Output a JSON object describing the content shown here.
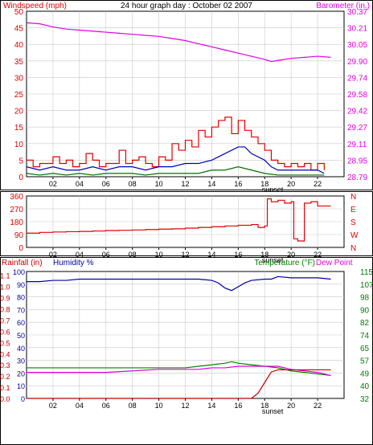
{
  "header": {
    "left_label": "Windspeed (mph)",
    "title": "24 hour graph day : October 02 2007",
    "right_label": "Barometer (in.)"
  },
  "colors": {
    "wind_gust": "#e00000",
    "wind_avg": "#0000c0",
    "wind_low": "#007000",
    "barometer": "#e000e0",
    "direction": "#e00000",
    "humidity": "#0000a0",
    "rain": "#c00000",
    "temperature": "#008000",
    "dewpoint": "#e000e0",
    "frame": "#000000",
    "grid": "#c8c8c8"
  },
  "x_ticks": [
    "02",
    "04",
    "06",
    "08",
    "10",
    "12",
    "14",
    "16",
    "18",
    "20",
    "22"
  ],
  "sunset_label": "sunset",
  "chart_data": [
    {
      "type": "line",
      "name": "wind-barometer",
      "xlabel": "",
      "ylabel": "Windspeed (mph)",
      "y2label": "Barometer (in.)",
      "xlim": [
        0,
        24
      ],
      "ylim": [
        0,
        50
      ],
      "y_ticks": [
        "0",
        "5",
        "10",
        "15",
        "20",
        "25",
        "30",
        "35",
        "40",
        "45",
        "50"
      ],
      "y2lim": [
        28.79,
        30.37
      ],
      "y2_ticks": [
        "28.79",
        "28.95",
        "29.11",
        "29.27",
        "29.42",
        "29.58",
        "29.74",
        "29.90",
        "30.05",
        "30.21",
        "30.37"
      ],
      "series": [
        {
          "key": "gust",
          "axis": "left",
          "x": [
            0,
            0.5,
            1,
            1.5,
            2,
            2.5,
            3,
            3.5,
            4,
            4.5,
            5,
            5.5,
            6,
            6.5,
            7,
            7.5,
            8,
            8.5,
            9,
            9.5,
            10,
            10.5,
            11,
            11.5,
            12,
            12.5,
            13,
            13.5,
            14,
            14.5,
            15,
            15.5,
            16,
            16.5,
            17,
            17.5,
            18,
            18.5,
            19,
            19.5,
            20,
            20.5,
            21,
            21.5,
            22,
            22.5
          ],
          "y": [
            5,
            3,
            4,
            4,
            6,
            4,
            5,
            3,
            4,
            7,
            5,
            3,
            4,
            4,
            8,
            4,
            5,
            6,
            4,
            3,
            6,
            5,
            10,
            8,
            11,
            9,
            14,
            12,
            15,
            17,
            18,
            13,
            17,
            14,
            12,
            10,
            8,
            5,
            4,
            3,
            4,
            3,
            4,
            2,
            4,
            2
          ]
        },
        {
          "key": "avg",
          "axis": "left",
          "x": [
            0,
            1,
            2,
            3,
            4,
            5,
            6,
            7,
            8,
            9,
            10,
            11,
            12,
            13,
            14,
            15,
            16,
            16.5,
            17,
            18,
            18.5,
            19,
            20,
            21,
            22,
            22.5
          ],
          "y": [
            3,
            2,
            3,
            2,
            2,
            3,
            2,
            3,
            3,
            2,
            3,
            3,
            4,
            4,
            5,
            7,
            9,
            9,
            7,
            5,
            3,
            2,
            2,
            2,
            2,
            1
          ]
        },
        {
          "key": "low",
          "axis": "left",
          "x": [
            0,
            1,
            2,
            3,
            4,
            5,
            6,
            7,
            8,
            9,
            10,
            11,
            12,
            13,
            14,
            15,
            16,
            17,
            18,
            19,
            20,
            21,
            22,
            22.5
          ],
          "y": [
            1,
            0.5,
            1,
            0.5,
            1,
            0.5,
            1,
            1,
            1,
            0.5,
            1,
            1,
            1,
            1,
            2,
            2,
            3,
            2,
            1,
            0.5,
            0.5,
            0.5,
            0.5,
            0.5
          ]
        },
        {
          "key": "barometer",
          "axis": "right",
          "x": [
            0,
            1,
            2,
            3,
            4,
            5,
            6,
            7,
            8,
            9,
            10,
            11,
            12,
            13,
            14,
            15,
            16,
            17,
            18,
            18.5,
            19,
            20,
            21,
            22,
            23
          ],
          "y": [
            30.26,
            30.25,
            30.22,
            30.2,
            30.19,
            30.18,
            30.17,
            30.16,
            30.15,
            30.14,
            30.13,
            30.11,
            30.09,
            30.06,
            30.03,
            30.0,
            29.97,
            29.94,
            29.91,
            29.89,
            29.9,
            29.92,
            29.93,
            29.94,
            29.93
          ]
        }
      ]
    },
    {
      "type": "line",
      "name": "wind-direction",
      "xlabel": "",
      "ylabel": "",
      "xlim": [
        0,
        24
      ],
      "ylim": [
        0,
        360
      ],
      "y_ticks": [
        "0",
        "90",
        "180",
        "270",
        "360"
      ],
      "right_ticks": [
        "N",
        "W",
        "S",
        "E",
        "N"
      ],
      "series": [
        {
          "key": "direction",
          "x": [
            0,
            1,
            2,
            3,
            4,
            5,
            6,
            7,
            8,
            9,
            10,
            11,
            12,
            13,
            14,
            15,
            16,
            17,
            17.5,
            18,
            18.2,
            18.5,
            19,
            19.5,
            20,
            20.2,
            20.5,
            21,
            21.5,
            22,
            22.5,
            23
          ],
          "y": [
            100,
            105,
            108,
            110,
            112,
            115,
            118,
            120,
            122,
            125,
            128,
            130,
            135,
            140,
            145,
            150,
            155,
            160,
            140,
            150,
            340,
            320,
            330,
            310,
            320,
            60,
            45,
            310,
            320,
            290,
            290,
            290
          ]
        }
      ]
    },
    {
      "type": "line",
      "name": "rain-humidity-temperature",
      "left_outer_label": "Rainfall (in)",
      "left_inner_label": "Humidity %",
      "right_label": "Temperature (°F)",
      "right_label2": "Dew Point",
      "xlim": [
        0,
        24
      ],
      "rain_lim": [
        0,
        1.2
      ],
      "rain_ticks": [
        "0.0",
        "0.1",
        "0.2",
        "0.3",
        "0.4",
        "0.5",
        "0.6",
        "0.7",
        "0.8",
        "0.9",
        "1.0",
        "1.1"
      ],
      "humidity_lim": [
        0,
        100
      ],
      "humidity_ticks": [
        "0",
        "10",
        "20",
        "30",
        "40",
        "50",
        "60",
        "70",
        "80",
        "90",
        "100"
      ],
      "temp_lim": [
        32,
        115
      ],
      "temp_ticks": [
        "32",
        "40",
        "49",
        "57",
        "65",
        "74",
        "82",
        "90",
        "98",
        "107",
        "115"
      ],
      "series": [
        {
          "key": "humidity",
          "axis": "humidity",
          "x": [
            0,
            1,
            2,
            3,
            4,
            5,
            6,
            7,
            8,
            9,
            10,
            11,
            12,
            13,
            14,
            14.5,
            15,
            15.5,
            16,
            16.5,
            17,
            18,
            18.5,
            19,
            20,
            21,
            22,
            23
          ],
          "y": [
            92,
            92,
            93,
            93,
            94,
            94,
            94,
            94,
            94,
            94,
            94,
            94,
            94,
            94,
            93,
            91,
            87,
            85,
            88,
            91,
            93,
            94,
            94,
            96,
            95,
            95,
            95,
            94
          ]
        },
        {
          "key": "temperature",
          "axis": "temp",
          "x": [
            0,
            2,
            4,
            6,
            8,
            10,
            12,
            13,
            14,
            15,
            15.5,
            16,
            17,
            18,
            19,
            20,
            21,
            22,
            23
          ],
          "y": [
            52,
            52,
            52,
            52,
            52,
            52,
            52,
            53,
            54,
            55,
            56,
            55,
            54,
            53,
            52,
            50,
            49,
            48,
            47
          ]
        },
        {
          "key": "dewpoint",
          "axis": "temp",
          "x": [
            0,
            2,
            4,
            6,
            8,
            10,
            12,
            13,
            14,
            15,
            16,
            17,
            18,
            19,
            20,
            21,
            22,
            23
          ],
          "y": [
            49,
            49,
            49,
            49,
            50,
            51,
            51,
            51,
            52,
            52,
            53,
            53,
            53,
            53,
            51,
            50,
            49,
            47
          ]
        },
        {
          "key": "rain",
          "axis": "rain",
          "x": [
            0,
            1,
            2,
            4,
            6,
            8,
            10,
            12,
            14,
            16,
            17,
            17.5,
            18,
            18.5,
            19,
            20,
            21,
            22,
            23
          ],
          "y": [
            0,
            0,
            0,
            0,
            0,
            0,
            0,
            0,
            0,
            0,
            0,
            0.05,
            0.15,
            0.25,
            0.27,
            0.27,
            0.27,
            0.27,
            0.27
          ]
        }
      ]
    }
  ]
}
